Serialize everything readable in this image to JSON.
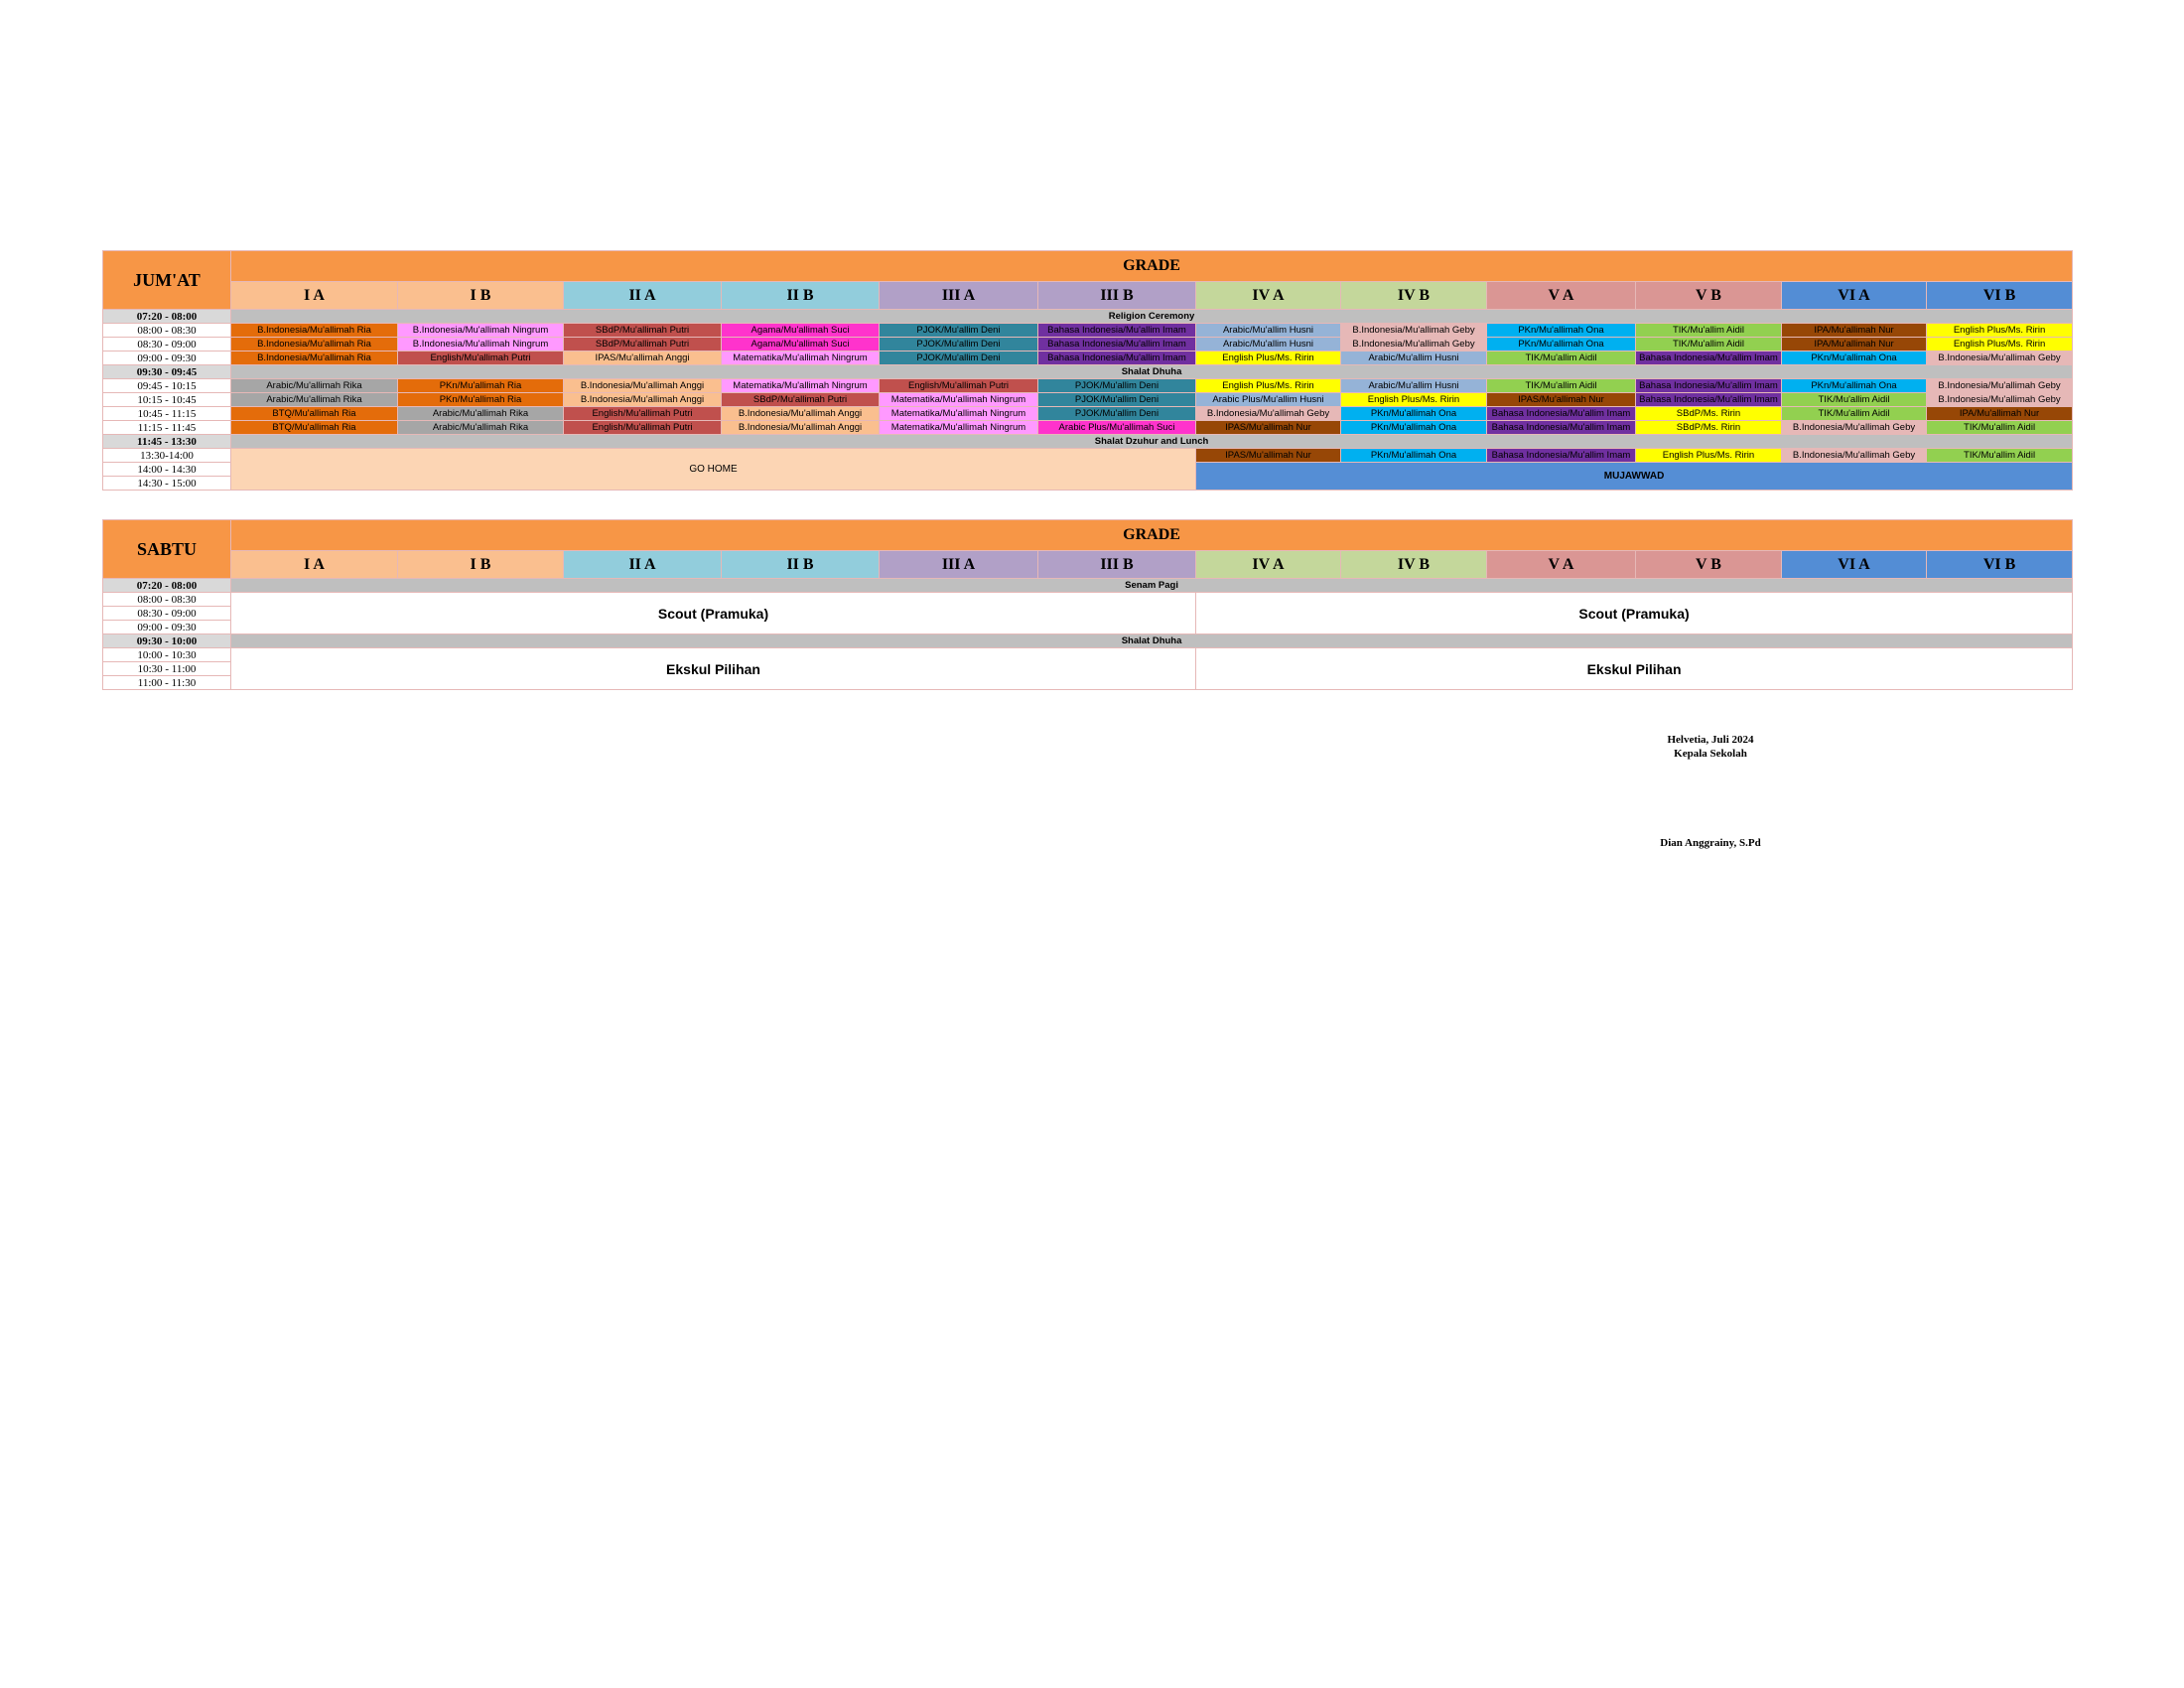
{
  "jumat": {
    "day": "JUM'AT",
    "grade": "GRADE",
    "classes": [
      "I A",
      "I B",
      "II A",
      "II B",
      "III A",
      "III B",
      "IV A",
      "IV B",
      "V A",
      "V B",
      "VI A",
      "VI B"
    ],
    "rows": [
      {
        "time": "07:20 - 08:00",
        "event": "Religion Ceremony"
      },
      {
        "time": "08:00 - 08:30",
        "cells": [
          "B.Indonesia/Mu'allimah Ria",
          "B.Indonesia/Mu'allimah Ningrum",
          "SBdP/Mu'allimah Putri",
          "Agama/Mu'allimah Suci",
          "PJOK/Mu'allim Deni",
          "Bahasa Indonesia/Mu'allim Imam",
          "Arabic/Mu'allim Husni",
          "B.Indonesia/Mu'allimah Geby",
          "PKn/Mu'allimah Ona",
          "TIK/Mu'allim Aidil",
          "IPA/Mu'allimah Nur",
          "English Plus/Ms. Ririn"
        ],
        "colors": [
          "#E46C0A",
          "#FF99FF",
          "#C0504D",
          "#FF33CC",
          "#31859C",
          "#7030A0",
          "#95B3D7",
          "#E6B8B7",
          "#00B0F0",
          "#92D050",
          "#974706",
          "#FFFF00"
        ]
      },
      {
        "time": "08:30 - 09:00",
        "cells": [
          "B.Indonesia/Mu'allimah Ria",
          "B.Indonesia/Mu'allimah Ningrum",
          "SBdP/Mu'allimah Putri",
          "Agama/Mu'allimah Suci",
          "PJOK/Mu'allim Deni",
          "Bahasa Indonesia/Mu'allim Imam",
          "Arabic/Mu'allim Husni",
          "B.Indonesia/Mu'allimah Geby",
          "PKn/Mu'allimah Ona",
          "TIK/Mu'allim Aidil",
          "IPA/Mu'allimah Nur",
          "English Plus/Ms. Ririn"
        ],
        "colors": [
          "#E46C0A",
          "#FF99FF",
          "#C0504D",
          "#FF33CC",
          "#31859C",
          "#7030A0",
          "#95B3D7",
          "#E6B8B7",
          "#00B0F0",
          "#92D050",
          "#974706",
          "#FFFF00"
        ]
      },
      {
        "time": "09:00 - 09:30",
        "cells": [
          "B.Indonesia/Mu'allimah Ria",
          "English/Mu'allimah Putri",
          "IPAS/Mu'allimah Anggi",
          "Matematika/Mu'allimah Ningrum",
          "PJOK/Mu'allim Deni",
          "Bahasa Indonesia/Mu'allim Imam",
          "English Plus/Ms. Ririn",
          "Arabic/Mu'allim Husni",
          "TIK/Mu'allim Aidil",
          "Bahasa Indonesia/Mu'allim Imam",
          "PKn/Mu'allimah Ona",
          "B.Indonesia/Mu'allimah Geby"
        ],
        "colors": [
          "#E46C0A",
          "#C0504D",
          "#FABF8F",
          "#FF99FF",
          "#31859C",
          "#7030A0",
          "#FFFF00",
          "#95B3D7",
          "#92D050",
          "#7030A0",
          "#00B0F0",
          "#E6B8B7"
        ]
      },
      {
        "time": "09:30 - 09:45",
        "event": "Shalat Dhuha"
      },
      {
        "time": "09:45 - 10:15",
        "cells": [
          "Arabic/Mu'allimah Rika",
          "PKn/Mu'allimah Ria",
          "B.Indonesia/Mu'allimah Anggi",
          "Matematika/Mu'allimah Ningrum",
          "English/Mu'allimah Putri",
          "PJOK/Mu'allim Deni",
          "English Plus/Ms. Ririn",
          "Arabic/Mu'allim Husni",
          "TIK/Mu'allim Aidil",
          "Bahasa Indonesia/Mu'allim Imam",
          "PKn/Mu'allimah Ona",
          "B.Indonesia/Mu'allimah Geby"
        ],
        "colors": [
          "#A6A6A6",
          "#E46C0A",
          "#FABF8F",
          "#FF99FF",
          "#C0504D",
          "#31859C",
          "#FFFF00",
          "#95B3D7",
          "#92D050",
          "#7030A0",
          "#00B0F0",
          "#E6B8B7"
        ]
      },
      {
        "time": "10:15 - 10:45",
        "cells": [
          "Arabic/Mu'allimah Rika",
          "PKn/Mu'allimah Ria",
          "B.Indonesia/Mu'allimah Anggi",
          "SBdP/Mu'allimah Putri",
          "Matematika/Mu'allimah Ningrum",
          "PJOK/Mu'allim Deni",
          "Arabic Plus/Mu'allim Husni",
          "English Plus/Ms. Ririn",
          "IPAS/Mu'allimah Nur",
          "Bahasa Indonesia/Mu'allim Imam",
          "TIK/Mu'allim Aidil",
          "B.Indonesia/Mu'allimah Geby"
        ],
        "colors": [
          "#A6A6A6",
          "#E46C0A",
          "#FABF8F",
          "#C0504D",
          "#FF99FF",
          "#31859C",
          "#95B3D7",
          "#FFFF00",
          "#974706",
          "#7030A0",
          "#92D050",
          "#E6B8B7"
        ]
      },
      {
        "time": "10:45 - 11:15",
        "cells": [
          "BTQ/Mu'allimah Ria",
          "Arabic/Mu'allimah Rika",
          "English/Mu'allimah Putri",
          "B.Indonesia/Mu'allimah Anggi",
          "Matematika/Mu'allimah Ningrum",
          "PJOK/Mu'allim Deni",
          "B.Indonesia/Mu'allimah Geby",
          "PKn/Mu'allimah Ona",
          "Bahasa Indonesia/Mu'allim Imam",
          "SBdP/Ms. Ririn",
          "TIK/Mu'allim Aidil",
          "IPA/Mu'allimah Nur"
        ],
        "colors": [
          "#E46C0A",
          "#A6A6A6",
          "#C0504D",
          "#FABF8F",
          "#FF99FF",
          "#31859C",
          "#E6B8B7",
          "#00B0F0",
          "#7030A0",
          "#FFFF00",
          "#92D050",
          "#974706"
        ]
      },
      {
        "time": "11:15 - 11:45",
        "cells": [
          "BTQ/Mu'allimah Ria",
          "Arabic/Mu'allimah Rika",
          "English/Mu'allimah Putri",
          "B.Indonesia/Mu'allimah Anggi",
          "Matematika/Mu'allimah Ningrum",
          "Arabic Plus/Mu'allimah Suci",
          "IPAS/Mu'allimah Nur",
          "PKn/Mu'allimah Ona",
          "Bahasa Indonesia/Mu'allim Imam",
          "SBdP/Ms. Ririn",
          "B.Indonesia/Mu'allimah Geby",
          "TIK/Mu'allim Aidil"
        ],
        "colors": [
          "#E46C0A",
          "#A6A6A6",
          "#C0504D",
          "#FABF8F",
          "#FF99FF",
          "#FF33CC",
          "#974706",
          "#00B0F0",
          "#7030A0",
          "#FFFF00",
          "#E6B8B7",
          "#92D050"
        ]
      },
      {
        "time": "11:45 - 13:30",
        "event": "Shalat Dzuhur and Lunch"
      },
      {
        "times": [
          "13:30-14:00",
          "14:00 - 14:30",
          "14:30 - 15:00"
        ],
        "left": "GO HOME",
        "cells": [
          "IPAS/Mu'allimah Nur",
          "PKn/Mu'allimah Ona",
          "Bahasa Indonesia/Mu'allim Imam",
          "English Plus/Ms. Ririn",
          "B.Indonesia/Mu'allimah Geby",
          "TIK/Mu'allim Aidil"
        ],
        "colors": [
          "#974706",
          "#00B0F0",
          "#7030A0",
          "#FFFF00",
          "#E6B8B7",
          "#92D050"
        ],
        "right": "MUJAWWAD"
      }
    ]
  },
  "sabtu": {
    "day": "SABTU",
    "grade": "GRADE",
    "classes": [
      "I A",
      "I B",
      "II A",
      "II B",
      "III A",
      "III B",
      "IV A",
      "IV B",
      "V A",
      "V B",
      "VI A",
      "VI B"
    ],
    "rows": [
      {
        "time": "07:20 - 08:00",
        "event": "Senam Pagi"
      },
      {
        "times": [
          "08:00 - 08:30",
          "08:30 - 09:00",
          "09:00 - 09:30"
        ],
        "left": "Scout (Pramuka)",
        "right": "Scout (Pramuka)"
      },
      {
        "time": "09:30 - 10:00",
        "event": "Shalat Dhuha"
      },
      {
        "times": [
          "10:00 - 10:30",
          "10:30 - 11:00",
          "11:00 - 11:30"
        ],
        "left": "Ekskul Pilihan",
        "right": "Ekskul Pilihan"
      }
    ]
  },
  "footer": {
    "place_date": "Helvetia, Juli 2024",
    "position": "Kepala Sekolah",
    "name": "Dian Anggrainy, S.Pd"
  }
}
